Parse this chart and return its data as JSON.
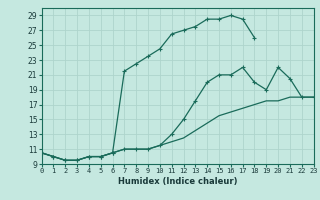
{
  "xlabel": "Humidex (Indice chaleur)",
  "xlim": [
    0,
    23
  ],
  "ylim": [
    9,
    30
  ],
  "xticks": [
    0,
    1,
    2,
    3,
    4,
    5,
    6,
    7,
    8,
    9,
    10,
    11,
    12,
    13,
    14,
    15,
    16,
    17,
    18,
    19,
    20,
    21,
    22,
    23
  ],
  "yticks": [
    9,
    11,
    13,
    15,
    17,
    19,
    21,
    23,
    25,
    27,
    29
  ],
  "bg_color": "#c5e8e0",
  "grid_color": "#aed4cc",
  "line_color": "#1a6b5a",
  "lines": [
    {
      "x": [
        0,
        1,
        2,
        3,
        4,
        5,
        6,
        7,
        8,
        9,
        10,
        11,
        12,
        13,
        14,
        15,
        16,
        17,
        18
      ],
      "y": [
        10.5,
        10.0,
        9.5,
        9.5,
        10.0,
        10.0,
        10.5,
        21.5,
        22.5,
        23.5,
        24.5,
        26.5,
        27.0,
        27.5,
        28.5,
        28.5,
        29.0,
        28.5,
        26.0
      ],
      "marker": true
    },
    {
      "x": [
        0,
        1,
        2,
        3,
        4,
        5,
        6,
        7,
        8,
        9,
        10,
        11,
        12,
        13,
        14,
        15,
        16,
        17,
        18,
        19,
        20,
        21,
        22,
        23
      ],
      "y": [
        10.5,
        10.0,
        9.5,
        9.5,
        10.0,
        10.0,
        10.5,
        11.0,
        11.0,
        11.0,
        11.5,
        13.0,
        15.0,
        17.5,
        20.0,
        21.0,
        21.0,
        22.0,
        20.0,
        19.0,
        22.0,
        20.5,
        18.0,
        18.0
      ],
      "marker": true
    },
    {
      "x": [
        0,
        1,
        2,
        3,
        4,
        5,
        6,
        7,
        8,
        9,
        10,
        11,
        12,
        13,
        14,
        15,
        16,
        17,
        18,
        19,
        20,
        21,
        22,
        23
      ],
      "y": [
        10.5,
        10.0,
        9.5,
        9.5,
        10.0,
        10.0,
        10.5,
        11.0,
        11.0,
        11.0,
        11.5,
        12.0,
        12.5,
        13.5,
        14.5,
        15.5,
        16.0,
        16.5,
        17.0,
        17.5,
        17.5,
        18.0,
        18.0,
        18.0
      ],
      "marker": false
    }
  ]
}
